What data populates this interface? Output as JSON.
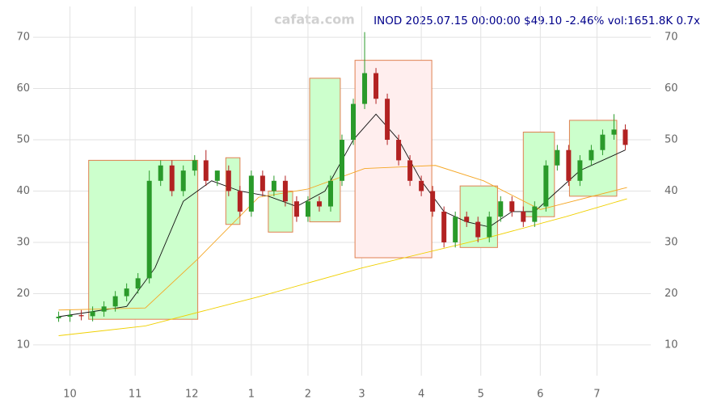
{
  "chart_data": {
    "type": "candlestick",
    "watermark": "cafata.com",
    "title": "INOD 2025.07.15 00:00:00 $49.10 -2.46% vol:1651.8K 0.7x",
    "up_color": "#2a9a2a",
    "down_color": "#b22222",
    "xlim": [
      -13,
      205
    ],
    "ylim": [
      4,
      76
    ],
    "xticks": [
      {
        "value": 0,
        "label": "10"
      },
      {
        "value": 23,
        "label": "11"
      },
      {
        "value": 43,
        "label": "12"
      },
      {
        "value": 64,
        "label": "1"
      },
      {
        "value": 84,
        "label": "2"
      },
      {
        "value": 103,
        "label": "3"
      },
      {
        "value": 124,
        "label": "4"
      },
      {
        "value": 145,
        "label": "5"
      },
      {
        "value": 166,
        "label": "6"
      },
      {
        "value": 186,
        "label": "7"
      }
    ],
    "yticks": [
      10,
      20,
      30,
      40,
      50,
      60,
      70
    ],
    "grid": true,
    "x": [
      -4,
      0,
      4,
      8,
      12,
      16,
      20,
      24,
      28,
      32,
      36,
      40,
      44,
      48,
      52,
      56,
      60,
      64,
      68,
      72,
      76,
      80,
      84,
      88,
      92,
      96,
      100,
      104,
      108,
      112,
      116,
      120,
      124,
      128,
      132,
      136,
      140,
      144,
      148,
      152,
      156,
      160,
      164,
      168,
      172,
      176,
      180,
      184,
      188,
      192,
      196
    ],
    "open": [
      15.2,
      15.5,
      15.8,
      15.6,
      16.5,
      17.5,
      19.5,
      21,
      23,
      42,
      45,
      40,
      44,
      46,
      42,
      44,
      40,
      36,
      43,
      40,
      42,
      38,
      35,
      38,
      37,
      42,
      50,
      57,
      63,
      58,
      50,
      46,
      42,
      40,
      36,
      30,
      35,
      34,
      31,
      35,
      38,
      36,
      34,
      37,
      45,
      48,
      42,
      46,
      48,
      51,
      52
    ],
    "high": [
      16.5,
      16.8,
      16.8,
      17.5,
      18.5,
      20.5,
      22,
      24,
      44,
      46,
      46,
      45,
      47,
      48,
      44,
      45,
      41,
      44,
      44,
      43,
      43,
      39,
      39,
      39,
      43,
      51,
      58,
      71,
      64,
      59,
      51,
      47,
      43,
      41,
      37,
      36,
      36,
      35,
      36,
      39,
      39,
      37,
      38,
      46,
      49,
      49,
      47,
      49,
      52,
      55,
      53
    ],
    "low": [
      14.5,
      14.5,
      14.8,
      14.6,
      15.5,
      16.5,
      18.5,
      20,
      22,
      41,
      39,
      39,
      43,
      41,
      41,
      39,
      35,
      35,
      39,
      39,
      37,
      34,
      34,
      36,
      36,
      41,
      49,
      56,
      57,
      49,
      45,
      41,
      39,
      35,
      29,
      29,
      33,
      30,
      30,
      34,
      35,
      33,
      33,
      36,
      44,
      41,
      41,
      45,
      47,
      50,
      48
    ],
    "close": [
      15.5,
      15.8,
      15.6,
      16.5,
      17.5,
      19.5,
      21,
      23,
      42,
      45,
      40,
      44,
      46,
      42,
      44,
      40,
      36,
      43,
      40,
      42,
      38,
      35,
      38,
      37,
      42,
      50,
      57,
      63,
      58,
      50,
      46,
      42,
      40,
      36,
      30,
      35,
      34,
      31,
      35,
      38,
      36,
      34,
      37,
      45,
      48,
      42,
      46,
      48,
      51,
      52,
      49
    ],
    "boxes": [
      {
        "x": [
          6.6,
          45.1
        ],
        "y": [
          15,
          46
        ],
        "color": "#ccffcc"
      },
      {
        "x": [
          55,
          60
        ],
        "y": [
          33.5,
          46.5
        ],
        "color": "#ccffcc"
      },
      {
        "x": [
          70,
          78.6
        ],
        "y": [
          32,
          40
        ],
        "color": "#ccffcc"
      },
      {
        "x": [
          84.6,
          95.4
        ],
        "y": [
          34,
          62
        ],
        "color": "#ccffcc"
      },
      {
        "x": [
          100.6,
          127.7
        ],
        "y": [
          27,
          65.5
        ],
        "color": "#ffeeee"
      },
      {
        "x": [
          137.7,
          150.9
        ],
        "y": [
          29,
          41
        ],
        "color": "#ccffcc"
      },
      {
        "x": [
          160,
          171
        ],
        "y": [
          35,
          51.5
        ],
        "color": "#ccffcc"
      },
      {
        "x": [
          176.3,
          193
        ],
        "y": [
          39,
          53.8
        ],
        "color": "#ccffcc"
      }
    ],
    "lines": [
      {
        "color": "#111111",
        "x": [
          -4,
          20,
          30,
          40,
          50,
          60,
          70,
          80,
          90,
          100,
          108,
          116,
          124,
          132,
          140,
          148,
          156,
          164,
          172,
          180,
          188,
          196
        ],
        "values": [
          15.5,
          17.5,
          25,
          38,
          42,
          40,
          39,
          37,
          40,
          50,
          55,
          50,
          42,
          36,
          34,
          33,
          36,
          36,
          40,
          44,
          46,
          48
        ]
      },
      {
        "color": "#f5a623",
        "x": [
          -4,
          26.6,
          45,
          66.6,
          84,
          104,
          129,
          146,
          166,
          196.6
        ],
        "values": [
          16.8,
          17.2,
          26.7,
          38.8,
          40.4,
          44.4,
          45,
          42,
          36.4,
          40.7
        ]
      },
      {
        "color": "#f0d000",
        "x": [
          -4,
          26.6,
          66.6,
          103,
          146,
          175,
          196.6
        ],
        "values": [
          11.8,
          13.7,
          19.4,
          25,
          30.7,
          35,
          38.5
        ]
      }
    ]
  }
}
